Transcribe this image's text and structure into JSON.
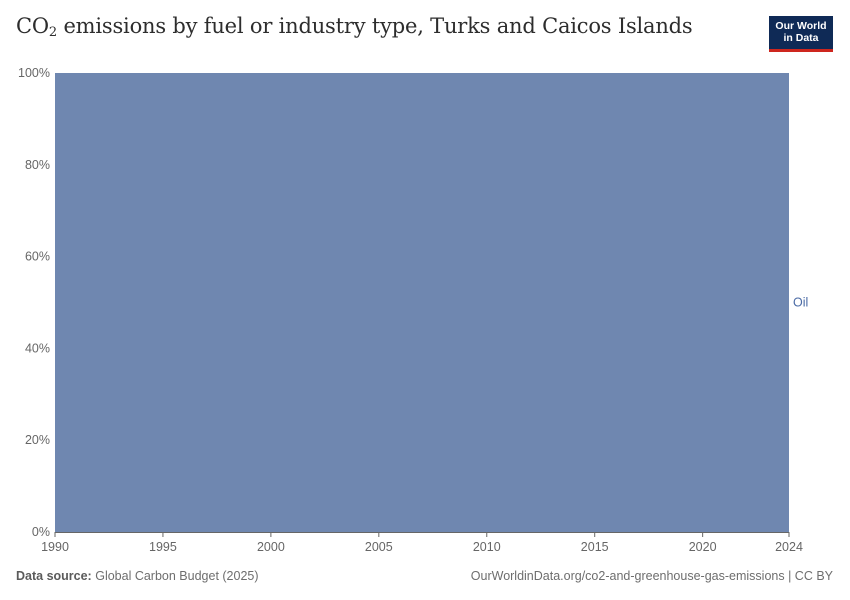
{
  "header": {
    "title_main": "CO",
    "title_sub": "2",
    "title_rest": " emissions by fuel or industry type, Turks and Caicos Islands",
    "logo_line1": "Our World",
    "logo_line2": "in Data"
  },
  "footer": {
    "source_label": "Data source:",
    "source_value": "Global Carbon Budget (2025)",
    "url_text": "OurWorldinData.org/co2-and-greenhouse-gas-emissions | CC BY"
  },
  "colors": {
    "oil": "#6f87b0",
    "oil_label": "#4a6aa5",
    "axis": "#666666",
    "tick_text": "#666666",
    "logo_bg": "#0f2a56",
    "logo_accent": "#ce261e"
  },
  "chart_data": {
    "type": "area",
    "stacked": true,
    "relative": true,
    "x_range": [
      1990,
      2024
    ],
    "x_ticks": [
      "1990",
      "1995",
      "2000",
      "2005",
      "2010",
      "2015",
      "2020",
      "2024"
    ],
    "y_range": [
      0,
      100
    ],
    "y_ticks": [
      "0%",
      "20%",
      "40%",
      "60%",
      "80%",
      "100%"
    ],
    "grid": false,
    "legend": "inline-right",
    "series": [
      {
        "name": "Oil",
        "x": [
          1990,
          2024
        ],
        "y": [
          100,
          100
        ]
      }
    ]
  }
}
